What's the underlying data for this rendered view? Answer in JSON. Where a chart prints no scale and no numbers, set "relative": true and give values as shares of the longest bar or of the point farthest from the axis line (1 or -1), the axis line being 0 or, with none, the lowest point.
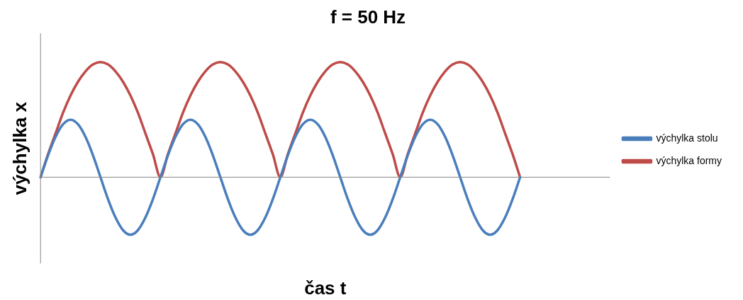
{
  "chart_data": {
    "type": "line",
    "title": "f = 50 Hz",
    "xlabel": "čas t",
    "ylabel": "výchylka x",
    "relative": true,
    "legend": "right",
    "marker": "none",
    "grid": false,
    "categories": [
      null,
      null,
      null,
      null,
      null,
      null,
      null,
      null,
      null,
      null,
      null,
      null,
      null,
      null,
      null,
      null,
      null,
      null,
      null,
      null,
      null,
      null,
      null,
      null,
      null,
      null,
      null,
      null,
      null,
      null,
      null,
      null,
      null,
      null,
      null,
      null,
      null,
      null,
      null,
      null,
      null,
      null,
      null,
      null,
      null,
      null,
      null,
      null,
      null,
      null,
      null,
      null,
      null,
      null,
      null,
      null,
      null,
      null,
      null,
      null,
      null,
      null,
      null,
      null,
      null,
      null,
      null,
      null,
      null,
      null,
      null,
      null,
      null,
      null,
      null,
      null,
      null
    ],
    "series": [
      {
        "name": "výchylka stolu",
        "color": "#4a7ebb",
        "values": [
          0,
          0.19,
          0.35,
          0.46,
          0.5,
          0.46,
          0.35,
          0.19,
          0,
          -0.19,
          -0.35,
          -0.46,
          -0.5,
          -0.46,
          -0.35,
          -0.19,
          0,
          0.19,
          0.35,
          0.46,
          0.5,
          0.46,
          0.35,
          0.19,
          0,
          -0.19,
          -0.35,
          -0.46,
          -0.5,
          -0.46,
          -0.35,
          -0.19,
          0,
          0.19,
          0.35,
          0.46,
          0.5,
          0.46,
          0.35,
          0.19,
          0,
          -0.19,
          -0.35,
          -0.46,
          -0.5,
          -0.46,
          -0.35,
          -0.19,
          0,
          0.19,
          0.35,
          0.46,
          0.5,
          0.46,
          0.35,
          0.19,
          0,
          -0.19,
          -0.35,
          -0.46,
          -0.5,
          -0.46,
          -0.35,
          -0.19,
          0,
          null,
          null,
          null,
          null,
          null,
          null,
          null,
          null,
          null,
          null,
          null,
          null
        ]
      },
      {
        "name": "výchylka formy",
        "color": "#be4b48",
        "values": [
          0,
          0.2,
          0.38,
          0.56,
          0.71,
          0.83,
          0.92,
          0.98,
          1,
          0.98,
          0.92,
          0.83,
          0.71,
          0.56,
          0.38,
          0.2,
          0,
          0.2,
          0.38,
          0.56,
          0.71,
          0.83,
          0.92,
          0.98,
          1,
          0.98,
          0.92,
          0.83,
          0.71,
          0.56,
          0.38,
          0.2,
          0,
          0.2,
          0.38,
          0.56,
          0.71,
          0.83,
          0.92,
          0.98,
          1,
          0.98,
          0.92,
          0.83,
          0.71,
          0.56,
          0.38,
          0.2,
          0,
          0.2,
          0.38,
          0.56,
          0.71,
          0.83,
          0.92,
          0.98,
          1,
          0.98,
          0.92,
          0.83,
          0.71,
          0.56,
          0.38,
          0.2,
          0,
          null,
          null,
          null,
          null,
          null,
          null,
          null,
          null,
          null,
          null,
          null,
          null
        ]
      }
    ]
  }
}
